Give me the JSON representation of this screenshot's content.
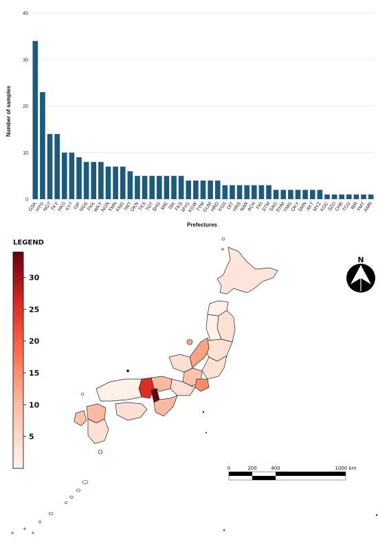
{
  "chart_data": {
    "type": "bar",
    "categories": [
      "GSK",
      "HYG",
      "NGT",
      "TKY",
      "HKD",
      "KYT",
      "GIF",
      "NGS",
      "FKK",
      "WKY",
      "NGN",
      "YMN",
      "KNG",
      "IWT",
      "OKN",
      "TKS",
      "TOT",
      "SHG",
      "MIE",
      "ISK",
      "FKS",
      "MYG",
      "KGW",
      "TYM",
      "GUM",
      "HRD",
      "KGS",
      "OIT",
      "HRS",
      "NAR",
      "ACH",
      "FKI",
      "STM",
      "SAG",
      "EHM",
      "YMG",
      "OKY",
      "SMN",
      "AKT",
      "MYZ",
      "KOC",
      "SZO",
      "CHB",
      "TCG",
      "IBR",
      "YMT",
      "AMR"
    ],
    "values": [
      34,
      23,
      14,
      14,
      10,
      10,
      9,
      8,
      8,
      8,
      7,
      7,
      7,
      6,
      5,
      5,
      5,
      5,
      5,
      5,
      5,
      4,
      4,
      4,
      4,
      4,
      3,
      3,
      3,
      3,
      3,
      3,
      3,
      2,
      2,
      2,
      2,
      2,
      2,
      2,
      1,
      1,
      1,
      1,
      1,
      1,
      1
    ],
    "ylim": [
      0,
      40
    ],
    "yticks": [
      0,
      10,
      20,
      30,
      40
    ],
    "xlabel": "Prefectures",
    "ylabel": "Number of samples",
    "title": "",
    "bar_color": "#1d5b7d",
    "grid": true
  },
  "map": {
    "legend_title": "LEGEND",
    "legend_ticks": [
      5,
      10,
      15,
      20,
      25,
      30
    ],
    "legend_range": [
      0,
      34
    ],
    "colors": {
      "low": "#fff4ee",
      "mid": "#ef3b2c",
      "high": "#67000d"
    },
    "north_label": "N",
    "scale_labels": [
      "0",
      "200",
      "400",
      "1000 km"
    ]
  }
}
